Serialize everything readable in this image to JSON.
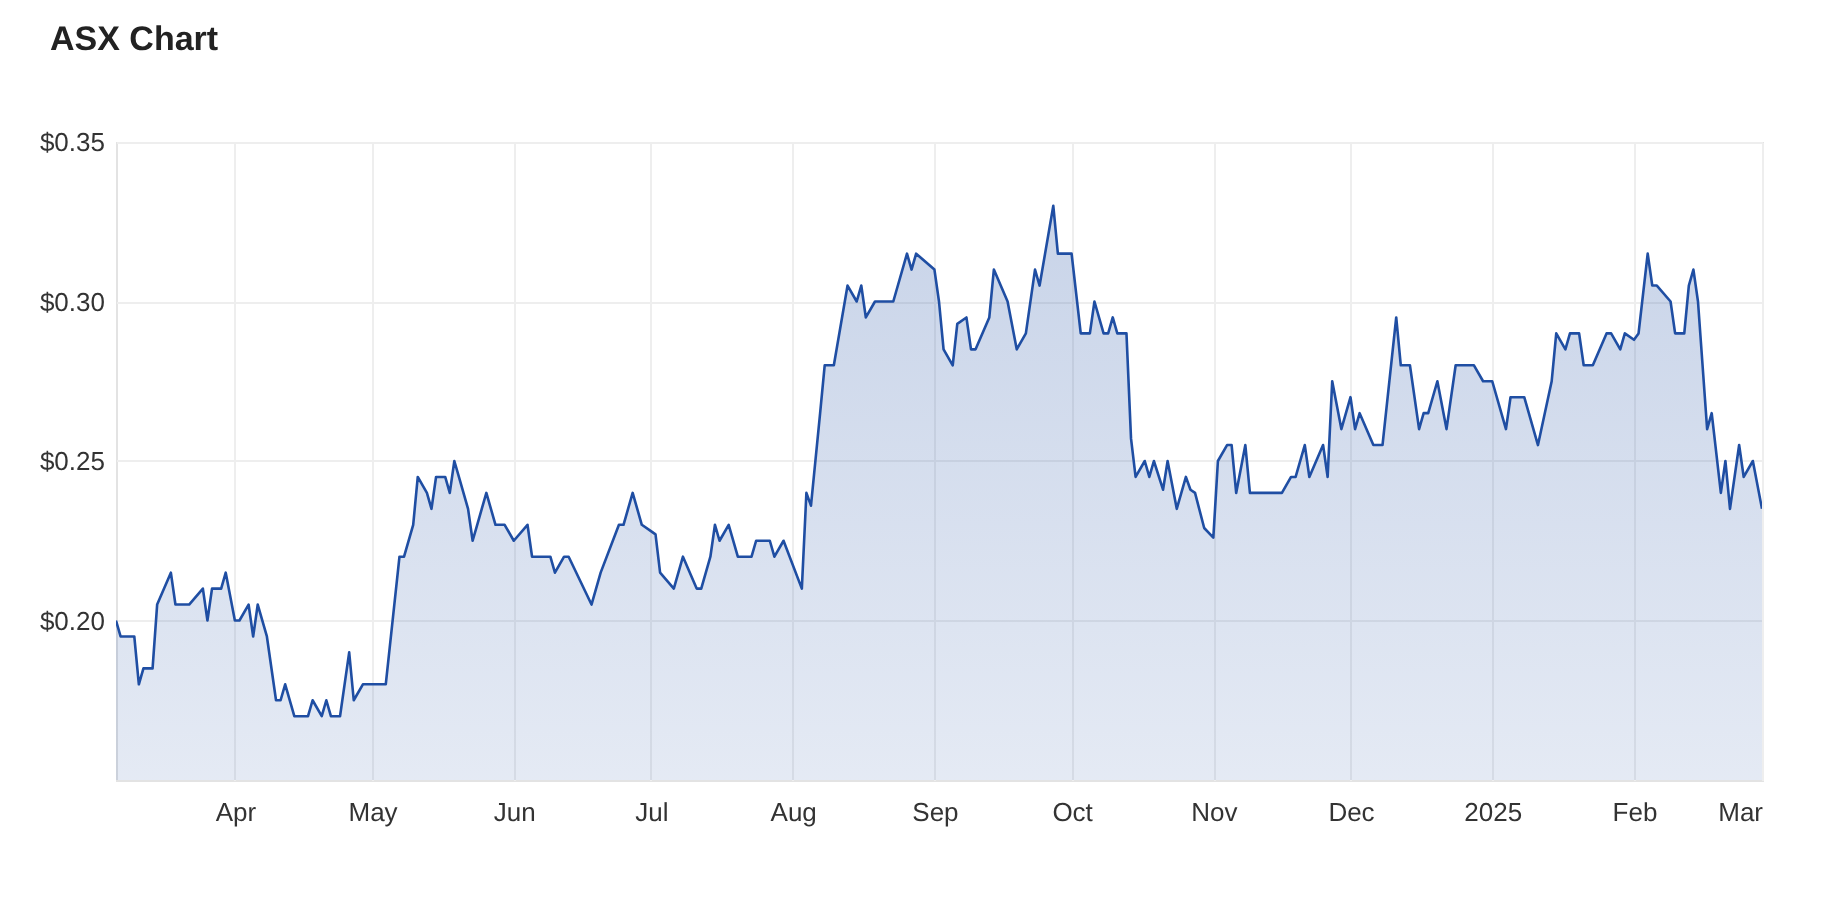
{
  "chart_data": {
    "type": "area",
    "title": "ASX Chart",
    "x": [
      "2024-03-06",
      "2024-03-07",
      "2024-03-10",
      "2024-03-11",
      "2024-03-12",
      "2024-03-14",
      "2024-03-15",
      "2024-03-18",
      "2024-03-19",
      "2024-03-22",
      "2024-03-25",
      "2024-03-26",
      "2024-03-27",
      "2024-03-29",
      "2024-03-30",
      "2024-04-01",
      "2024-04-02",
      "2024-04-04",
      "2024-04-05",
      "2024-04-06",
      "2024-04-08",
      "2024-04-10",
      "2024-04-11",
      "2024-04-12",
      "2024-04-14",
      "2024-04-17",
      "2024-04-18",
      "2024-04-20",
      "2024-04-21",
      "2024-04-22",
      "2024-04-24",
      "2024-04-26",
      "2024-04-27",
      "2024-04-29",
      "2024-05-04",
      "2024-05-07",
      "2024-05-08",
      "2024-05-10",
      "2024-05-11",
      "2024-05-13",
      "2024-05-14",
      "2024-05-15",
      "2024-05-17",
      "2024-05-18",
      "2024-05-19",
      "2024-05-20",
      "2024-05-22",
      "2024-05-23",
      "2024-05-24",
      "2024-05-26",
      "2024-05-27",
      "2024-05-28",
      "2024-05-30",
      "2024-06-01",
      "2024-06-04",
      "2024-06-05",
      "2024-06-09",
      "2024-06-10",
      "2024-06-12",
      "2024-06-13",
      "2024-06-18",
      "2024-06-20",
      "2024-06-24",
      "2024-06-25",
      "2024-06-27",
      "2024-06-29",
      "2024-07-01",
      "2024-07-02",
      "2024-07-03",
      "2024-07-06",
      "2024-07-08",
      "2024-07-11",
      "2024-07-12",
      "2024-07-14",
      "2024-07-15",
      "2024-07-16",
      "2024-07-18",
      "2024-07-20",
      "2024-07-23",
      "2024-07-24",
      "2024-07-27",
      "2024-07-28",
      "2024-07-30",
      "2024-08-03",
      "2024-08-04",
      "2024-08-05",
      "2024-08-07",
      "2024-08-08",
      "2024-08-10",
      "2024-08-13",
      "2024-08-15",
      "2024-08-16",
      "2024-08-17",
      "2024-08-19",
      "2024-08-23",
      "2024-08-26",
      "2024-08-27",
      "2024-08-28",
      "2024-09-01",
      "2024-09-02",
      "2024-09-03",
      "2024-09-05",
      "2024-09-06",
      "2024-09-08",
      "2024-09-09",
      "2024-09-10",
      "2024-09-13",
      "2024-09-14",
      "2024-09-17",
      "2024-09-19",
      "2024-09-21",
      "2024-09-23",
      "2024-09-24",
      "2024-09-27",
      "2024-09-28",
      "2024-10-01",
      "2024-10-03",
      "2024-10-05",
      "2024-10-06",
      "2024-10-08",
      "2024-10-09",
      "2024-10-10",
      "2024-10-11",
      "2024-10-13",
      "2024-10-14",
      "2024-10-15",
      "2024-10-17",
      "2024-10-18",
      "2024-10-19",
      "2024-10-21",
      "2024-10-22",
      "2024-10-24",
      "2024-10-26",
      "2024-10-27",
      "2024-10-28",
      "2024-10-30",
      "2024-11-01",
      "2024-11-02",
      "2024-11-04",
      "2024-11-05",
      "2024-11-06",
      "2024-11-08",
      "2024-11-09",
      "2024-11-16",
      "2024-11-18",
      "2024-11-19",
      "2024-11-21",
      "2024-11-22",
      "2024-11-25",
      "2024-11-26",
      "2024-11-27",
      "2024-11-29",
      "2024-12-01",
      "2024-12-02",
      "2024-12-03",
      "2024-12-06",
      "2024-12-08",
      "2024-12-11",
      "2024-12-12",
      "2024-12-14",
      "2024-12-16",
      "2024-12-17",
      "2024-12-18",
      "2024-12-20",
      "2024-12-22",
      "2024-12-24",
      "2024-12-28",
      "2024-12-30",
      "2025-01-01",
      "2025-01-04",
      "2025-01-05",
      "2025-01-08",
      "2025-01-11",
      "2025-01-14",
      "2025-01-15",
      "2025-01-17",
      "2025-01-18",
      "2025-01-20",
      "2025-01-21",
      "2025-01-23",
      "2025-01-26",
      "2025-01-27",
      "2025-01-29",
      "2025-01-30",
      "2025-02-01",
      "2025-02-02",
      "2025-02-04",
      "2025-02-05",
      "2025-02-06",
      "2025-02-09",
      "2025-02-10",
      "2025-02-12",
      "2025-02-13",
      "2025-02-14",
      "2025-02-15",
      "2025-02-17",
      "2025-02-18",
      "2025-02-20",
      "2025-02-21",
      "2025-02-22",
      "2025-02-24",
      "2025-02-25",
      "2025-02-27",
      "2025-03-01"
    ],
    "series": [
      {
        "color": "#1f4ea3",
        "values": [
          0.2,
          0.195,
          0.195,
          0.18,
          0.185,
          0.185,
          0.205,
          0.215,
          0.205,
          0.205,
          0.21,
          0.2,
          0.21,
          0.21,
          0.215,
          0.2,
          0.2,
          0.205,
          0.195,
          0.205,
          0.195,
          0.175,
          0.175,
          0.18,
          0.17,
          0.17,
          0.175,
          0.17,
          0.175,
          0.17,
          0.17,
          0.19,
          0.175,
          0.18,
          0.18,
          0.22,
          0.22,
          0.23,
          0.245,
          0.24,
          0.235,
          0.245,
          0.245,
          0.24,
          0.25,
          0.245,
          0.235,
          0.225,
          0.23,
          0.24,
          0.235,
          0.23,
          0.23,
          0.225,
          0.23,
          0.22,
          0.22,
          0.215,
          0.22,
          0.22,
          0.205,
          0.215,
          0.23,
          0.23,
          0.24,
          0.23,
          0.228,
          0.227,
          0.215,
          0.21,
          0.22,
          0.21,
          0.21,
          0.22,
          0.23,
          0.225,
          0.23,
          0.22,
          0.22,
          0.225,
          0.225,
          0.22,
          0.225,
          0.21,
          0.24,
          0.236,
          0.265,
          0.28,
          0.28,
          0.305,
          0.3,
          0.305,
          0.295,
          0.3,
          0.3,
          0.315,
          0.31,
          0.315,
          0.31,
          0.3,
          0.285,
          0.28,
          0.293,
          0.295,
          0.285,
          0.285,
          0.295,
          0.31,
          0.3,
          0.285,
          0.29,
          0.31,
          0.305,
          0.33,
          0.315,
          0.315,
          0.29,
          0.29,
          0.3,
          0.29,
          0.29,
          0.295,
          0.29,
          0.29,
          0.257,
          0.245,
          0.25,
          0.245,
          0.25,
          0.241,
          0.25,
          0.235,
          0.245,
          0.241,
          0.24,
          0.229,
          0.226,
          0.25,
          0.255,
          0.255,
          0.24,
          0.255,
          0.24,
          0.24,
          0.245,
          0.245,
          0.255,
          0.245,
          0.255,
          0.245,
          0.275,
          0.26,
          0.27,
          0.26,
          0.265,
          0.255,
          0.255,
          0.295,
          0.28,
          0.28,
          0.26,
          0.265,
          0.265,
          0.275,
          0.26,
          0.28,
          0.28,
          0.275,
          0.275,
          0.26,
          0.27,
          0.27,
          0.255,
          0.275,
          0.29,
          0.285,
          0.29,
          0.29,
          0.28,
          0.28,
          0.29,
          0.29,
          0.285,
          0.29,
          0.288,
          0.29,
          0.315,
          0.305,
          0.305,
          0.3,
          0.29,
          0.29,
          0.305,
          0.31,
          0.3,
          0.26,
          0.265,
          0.24,
          0.25,
          0.235,
          0.255,
          0.245,
          0.25,
          0.235
        ]
      }
    ],
    "xlim": [
      "2024-03-06",
      "2025-03-01"
    ],
    "xticks": [
      {
        "value": "2024-04-01",
        "label": "Apr"
      },
      {
        "value": "2024-05-01",
        "label": "May"
      },
      {
        "value": "2024-06-01",
        "label": "Jun"
      },
      {
        "value": "2024-07-01",
        "label": "Jul"
      },
      {
        "value": "2024-08-01",
        "label": "Aug"
      },
      {
        "value": "2024-09-01",
        "label": "Sep"
      },
      {
        "value": "2024-10-01",
        "label": "Oct"
      },
      {
        "value": "2024-11-01",
        "label": "Nov"
      },
      {
        "value": "2024-12-01",
        "label": "Dec"
      },
      {
        "value": "2025-01-01",
        "label": "2025"
      },
      {
        "value": "2025-02-01",
        "label": "Feb"
      },
      {
        "value": "2025-03-01",
        "label": "Mar"
      }
    ],
    "ylim": [
      0.15,
      0.35
    ],
    "yticks": [
      {
        "value": 0.2,
        "label": "$0.20"
      },
      {
        "value": 0.25,
        "label": "$0.25"
      },
      {
        "value": 0.3,
        "label": "$0.30"
      },
      {
        "value": 0.35,
        "label": "$0.35"
      }
    ],
    "grid": true
  }
}
